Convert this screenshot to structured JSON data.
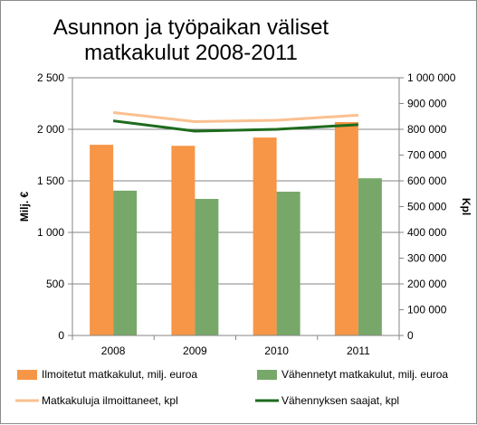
{
  "chart_data": {
    "type": "bar",
    "title_lines": [
      "Asunnon ja työpaikan väliset",
      "matkakulut 2008-2011"
    ],
    "categories": [
      "2008",
      "2009",
      "2010",
      "2011"
    ],
    "ylabel_left": "Milj. €",
    "ylabel_right": "Kpl",
    "ylim_left": [
      0,
      2500
    ],
    "ylim_right": [
      0,
      1000000
    ],
    "yticks_left": [
      "0",
      "500",
      "1 000",
      "1 500",
      "2 000",
      "2 500"
    ],
    "yticks_right": [
      "0",
      "100 000",
      "200 000",
      "300 000",
      "400 000",
      "500 000",
      "600 000",
      "700 000",
      "800 000",
      "900 000",
      "1 000 000"
    ],
    "grid": "horizontal",
    "legend_position": "bottom",
    "series": [
      {
        "name": "Ilmoitetut matkakulut, milj. euroa",
        "kind": "bar",
        "axis": "left",
        "color": "#f79646",
        "values": [
          1850,
          1840,
          1920,
          2070
        ]
      },
      {
        "name": "Vähennetyt matkakulut, milj. euroa",
        "kind": "bar",
        "axis": "left",
        "color": "#77a86a",
        "values": [
          1405,
          1325,
          1395,
          1525
        ]
      },
      {
        "name": "Matkakuluja ilmoittaneet, kpl",
        "kind": "line",
        "axis": "right",
        "color": "#fac090",
        "values": [
          865000,
          830000,
          835000,
          855000
        ]
      },
      {
        "name": "Vähennyksen saajat, kpl",
        "kind": "line",
        "axis": "right",
        "color": "#1e6b1e",
        "values": [
          833000,
          793000,
          800000,
          818000
        ]
      }
    ]
  }
}
